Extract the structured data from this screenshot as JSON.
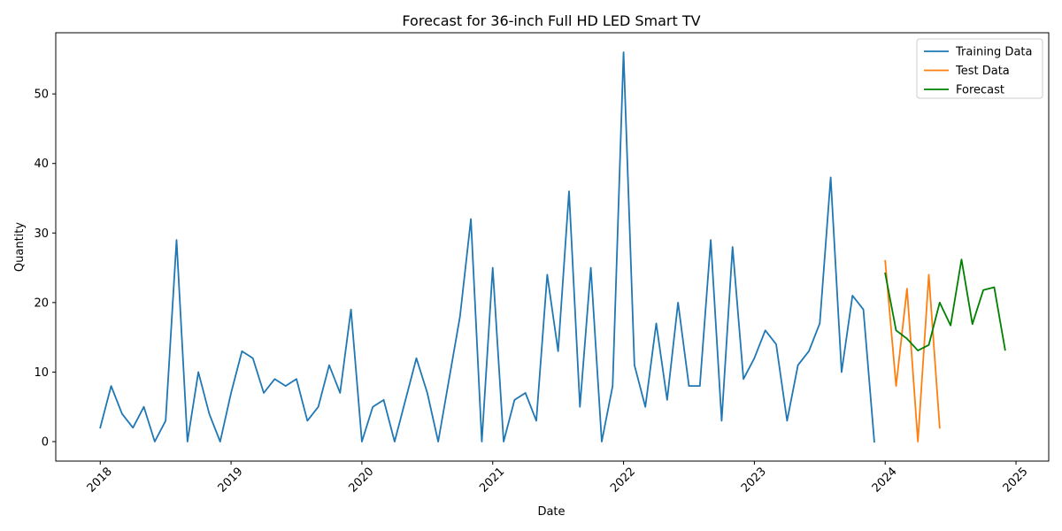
{
  "chart_data": {
    "type": "line",
    "title": "Forecast for 36-inch Full HD LED Smart TV",
    "xlabel": "Date",
    "ylabel": "Quantity",
    "xlim": [
      2017.66,
      2025.25
    ],
    "ylim": [
      -2.8,
      58.8
    ],
    "xticks": [
      {
        "value": 2018,
        "label": "2018"
      },
      {
        "value": 2019,
        "label": "2019"
      },
      {
        "value": 2020,
        "label": "2020"
      },
      {
        "value": 2021,
        "label": "2021"
      },
      {
        "value": 2022,
        "label": "2022"
      },
      {
        "value": 2023,
        "label": "2023"
      },
      {
        "value": 2024,
        "label": "2024"
      },
      {
        "value": 2025,
        "label": "2025"
      }
    ],
    "yticks": [
      {
        "value": 0,
        "label": "0"
      },
      {
        "value": 10,
        "label": "10"
      },
      {
        "value": 20,
        "label": "20"
      },
      {
        "value": 30,
        "label": "30"
      },
      {
        "value": 40,
        "label": "40"
      },
      {
        "value": 50,
        "label": "50"
      }
    ],
    "legend_position": "top-right",
    "series": [
      {
        "name": "Training Data",
        "color": "#1f77b4",
        "start_year": 2018,
        "start_month": 1,
        "values": [
          2,
          8,
          4,
          2,
          5,
          0,
          3,
          29,
          0,
          10,
          4,
          0,
          7,
          13,
          12,
          7,
          9,
          8,
          9,
          3,
          5,
          11,
          7,
          19,
          0,
          5,
          6,
          0,
          6,
          12,
          7,
          0,
          9,
          18,
          32,
          0,
          25,
          0,
          6,
          7,
          3,
          24,
          13,
          36,
          5,
          25,
          0,
          8,
          56,
          11,
          5,
          17,
          6,
          20,
          8,
          8,
          29,
          3,
          28,
          9,
          12,
          16,
          14,
          3,
          11,
          13,
          17,
          38,
          10,
          21,
          19,
          0
        ]
      },
      {
        "name": "Test Data",
        "color": "#ff7f0e",
        "start_year": 2024,
        "start_month": 1,
        "values": [
          26,
          8,
          22,
          0,
          24,
          2
        ]
      },
      {
        "name": "Forecast",
        "color": "#008000",
        "start_year": 2024,
        "start_month": 1,
        "values": [
          24.2,
          16.0,
          14.8,
          13.1,
          13.9,
          20.0,
          16.7,
          26.2,
          16.9,
          21.8,
          22.2,
          13.2
        ]
      }
    ]
  }
}
